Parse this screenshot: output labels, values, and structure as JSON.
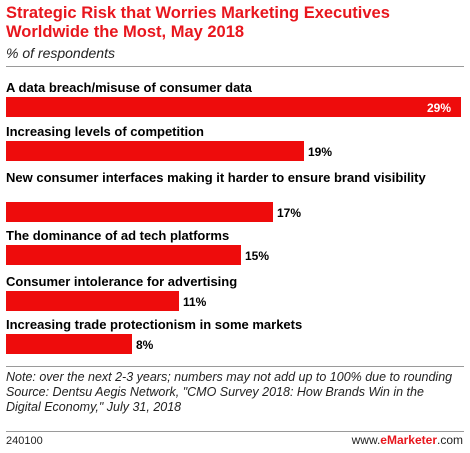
{
  "title": "Strategic Risk that Worries Marketing Executives Worldwide the Most, May 2018",
  "subtitle": "% of respondents",
  "chart_data": {
    "type": "bar",
    "orientation": "horizontal",
    "categories": [
      "A data breach/misuse of consumer data",
      "Increasing levels of competition",
      "New consumer interfaces making it harder to ensure brand visibility",
      "The dominance of ad tech platforms",
      "Consumer intolerance for advertising",
      "Increasing trade protectionism in some markets"
    ],
    "values": [
      29,
      19,
      17,
      15,
      11,
      8
    ],
    "value_labels": [
      "29%",
      "19%",
      "17%",
      "15%",
      "11%",
      "8%"
    ],
    "xlim": [
      0,
      29
    ],
    "bar_color": "#ee0c0c",
    "grid": false
  },
  "note": "Note: over the next 2-3 years; numbers may not add up to 100% due to rounding",
  "source": "Source: Dentsu Aegis Network, \"CMO Survey 2018: How Brands Win in the Digital Economy,\" July 31, 2018",
  "footer": {
    "chart_id": "240100",
    "brand_prefix": "www.",
    "brand_name": "eMarketer",
    "brand_suffix": ".com"
  }
}
